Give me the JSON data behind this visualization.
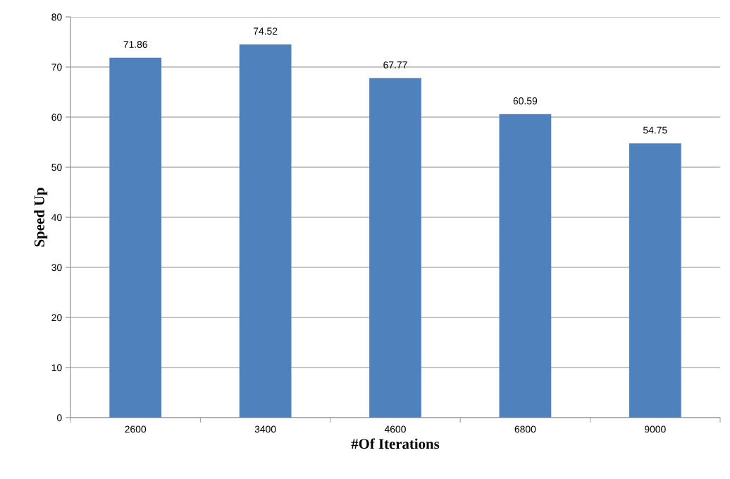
{
  "chart_data": {
    "type": "bar",
    "xlabel": "#Of Iterations",
    "ylabel": "Speed Up",
    "categories": [
      "2600",
      "3400",
      "4600",
      "6800",
      "9000"
    ],
    "values": [
      71.86,
      74.52,
      67.77,
      60.59,
      54.75
    ],
    "color": "#4f81bd",
    "ylim": [
      0,
      80
    ],
    "yticks": [
      0,
      10,
      20,
      30,
      40,
      50,
      60,
      70,
      80
    ],
    "grid": "y",
    "data_labels": true,
    "legend": false
  }
}
